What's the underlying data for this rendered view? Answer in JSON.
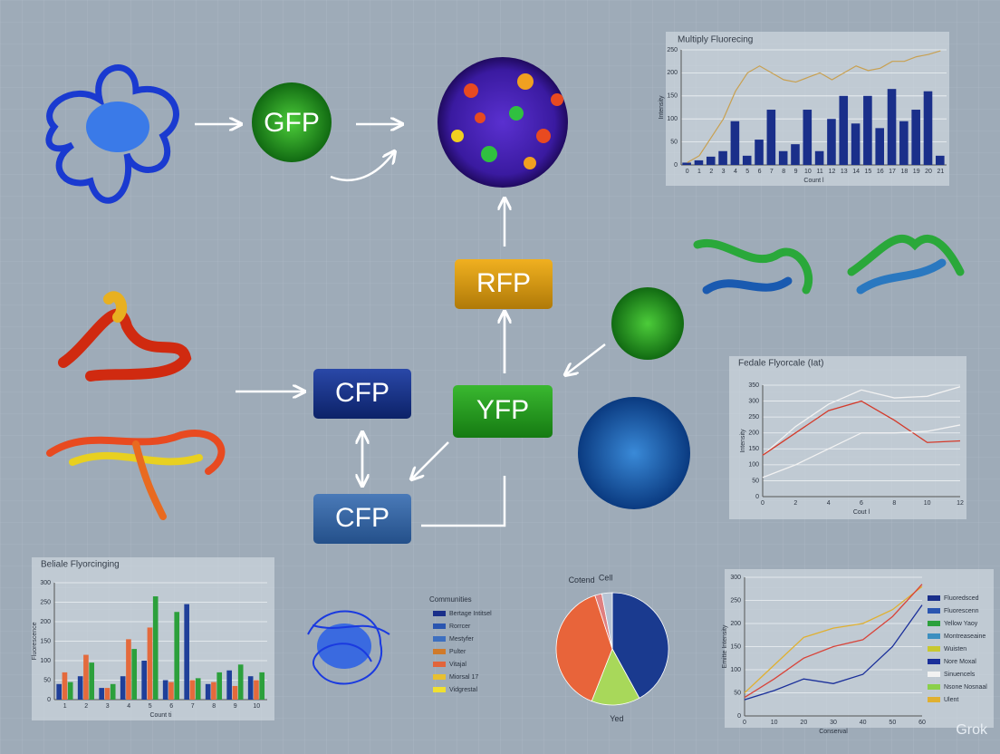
{
  "diagram": {
    "nodes": [
      {
        "label": "GFP"
      },
      {
        "label": "RFP"
      },
      {
        "label": "CFP"
      },
      {
        "label": "YFP"
      },
      {
        "label": "CFP"
      }
    ]
  },
  "chart_data": [
    {
      "type": "bar",
      "title": "Multiply Fluorecing",
      "x_label": "Count l",
      "y_label": "Intensity",
      "color": "#1a2f8a",
      "categories": [
        "0",
        "1",
        "2",
        "3",
        "4",
        "5",
        "6",
        "7",
        "8",
        "9",
        "10",
        "11",
        "12",
        "13",
        "14",
        "15",
        "16",
        "17",
        "18",
        "19",
        "20",
        "21"
      ],
      "values": [
        5,
        10,
        18,
        30,
        95,
        20,
        55,
        120,
        30,
        45,
        120,
        30,
        100,
        150,
        90,
        150,
        80,
        165,
        95,
        120,
        160,
        20
      ],
      "line": {
        "color": "#c8a050",
        "values": [
          5,
          20,
          60,
          100,
          160,
          200,
          215,
          200,
          185,
          180,
          190,
          200,
          185,
          200,
          215,
          205,
          210,
          225,
          225,
          235,
          240,
          248
        ]
      },
      "ylim": [
        0,
        250
      ],
      "yticks": [
        0,
        50,
        100,
        150,
        200,
        250
      ],
      "grid": true
    },
    {
      "type": "line",
      "title": "Fedale Flyorcale (Iat)",
      "x_label": "Cout l",
      "y_label": "Intensity",
      "x": [
        0,
        2,
        4,
        6,
        8,
        10,
        12
      ],
      "xlim": [
        0,
        12
      ],
      "xticks": [
        0,
        2,
        4,
        6,
        8,
        10,
        12
      ],
      "series": [
        {
          "color": "#f2f2f2",
          "values": [
            130,
            220,
            290,
            335,
            310,
            315,
            345
          ]
        },
        {
          "color": "#d43a2a",
          "values": [
            130,
            200,
            270,
            300,
            240,
            170,
            175
          ]
        },
        {
          "color": "#f2f2f2",
          "values": [
            60,
            100,
            150,
            200,
            200,
            205,
            225
          ]
        }
      ],
      "ylim": [
        0,
        350
      ],
      "yticks": [
        0,
        50,
        100,
        150,
        200,
        250,
        300,
        350
      ],
      "grid": true
    },
    {
      "type": "bar",
      "title": "Beliale Flyorcinging",
      "x_label": "Count ti",
      "y_label": "Fluorescence",
      "categories": [
        "1",
        "2",
        "3",
        "4",
        "5",
        "6",
        "7",
        "8",
        "9",
        "10"
      ],
      "series": [
        {
          "color": "#1f3f99",
          "values": [
            40,
            60,
            30,
            60,
            100,
            50,
            245,
            40,
            75,
            60
          ]
        },
        {
          "color": "#e46a3c",
          "values": [
            70,
            115,
            30,
            155,
            185,
            45,
            50,
            45,
            35,
            50
          ]
        },
        {
          "color": "#2ca03c",
          "values": [
            45,
            95,
            40,
            130,
            265,
            225,
            55,
            70,
            90,
            70
          ]
        }
      ],
      "ylim": [
        0,
        300
      ],
      "yticks": [
        0,
        50,
        100,
        150,
        200,
        250,
        300
      ],
      "grid": true,
      "legend_title": "Communities",
      "legend_entries": [
        {
          "label": "Bertage Intitsel",
          "color": "#1a2f8a"
        },
        {
          "label": "Rorrcer",
          "color": "#2a55b0"
        },
        {
          "label": "Mestyfer",
          "color": "#3d6fc0"
        },
        {
          "label": "Pulter",
          "color": "#d07a2a"
        },
        {
          "label": "Vitajal",
          "color": "#e2643a"
        },
        {
          "label": "Miorsal 17",
          "color": "#e8c030"
        },
        {
          "label": "Vidgrestal",
          "color": "#f0e030"
        }
      ]
    },
    {
      "type": "pie",
      "categories": [
        null,
        "Yed",
        null,
        "Cotend",
        "Cell"
      ],
      "values": [
        42,
        14,
        39,
        2,
        3
      ],
      "colors": [
        "#1a3a8f",
        "#a8d85a",
        "#e8643a",
        "#e08080",
        "#b8c4d4"
      ]
    },
    {
      "type": "line",
      "x_label": "Conserval",
      "y_label": "Emitte Intensity",
      "x": [
        0,
        10,
        20,
        30,
        40,
        50,
        60
      ],
      "xlim": [
        0,
        60
      ],
      "xticks": [
        0,
        10,
        20,
        30,
        40,
        50,
        60
      ],
      "series": [
        {
          "color": "#e0b030",
          "values": [
            50,
            110,
            170,
            190,
            200,
            230,
            280
          ]
        },
        {
          "color": "#d8443a",
          "values": [
            40,
            80,
            125,
            150,
            165,
            215,
            285
          ]
        },
        {
          "color": "#1a2f9a",
          "values": [
            35,
            55,
            80,
            70,
            90,
            150,
            240
          ]
        }
      ],
      "ylim": [
        0,
        300
      ],
      "yticks": [
        0,
        50,
        100,
        150,
        200,
        250,
        300
      ],
      "grid": true,
      "legend_entries": [
        {
          "label": "Fluoredsced",
          "color": "#1a2f8a"
        },
        {
          "label": "Fluorescenn",
          "color": "#2a55b0"
        },
        {
          "label": "Yellow Yaoy",
          "color": "#2ca03c"
        },
        {
          "label": "Montreaseaine",
          "color": "#3d8fc0"
        },
        {
          "label": "Wuisten",
          "color": "#c8c830"
        },
        {
          "label": "Nore Moxal",
          "color": "#1a2f9a"
        },
        {
          "label": "Sinuencels",
          "color": "#f2f2f2"
        },
        {
          "label": "Nsone Nosnaal",
          "color": "#8ad04a"
        },
        {
          "label": "Ulent",
          "color": "#e0b030"
        }
      ]
    }
  ],
  "watermark": "Grok"
}
